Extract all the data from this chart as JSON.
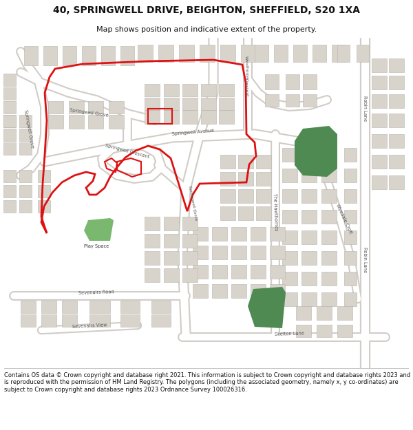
{
  "title_line1": "40, SPRINGWELL DRIVE, BEIGHTON, SHEFFIELD, S20 1XA",
  "title_line2": "Map shows position and indicative extent of the property.",
  "footer_text": "Contains OS data © Crown copyright and database right 2021. This information is subject to Crown copyright and database rights 2023 and is reproduced with the permission of HM Land Registry. The polygons (including the associated geometry, namely x, y co-ordinates) are subject to Crown copyright and database rights 2023 Ordnance Survey 100026316.",
  "map_bg": "#f2f0ed",
  "road_fill": "#ffffff",
  "road_edge": "#d0ccc6",
  "bld_fill": "#d8d4cc",
  "bld_edge": "#b8b4ac",
  "green_dark": "#4e8a52",
  "green_light": "#7ab870",
  "red_col": "#dd1111",
  "lbl_col": "#555555",
  "title_fs": 10,
  "sub_fs": 8,
  "foot_fs": 6,
  "lbl_fs": 4.8
}
